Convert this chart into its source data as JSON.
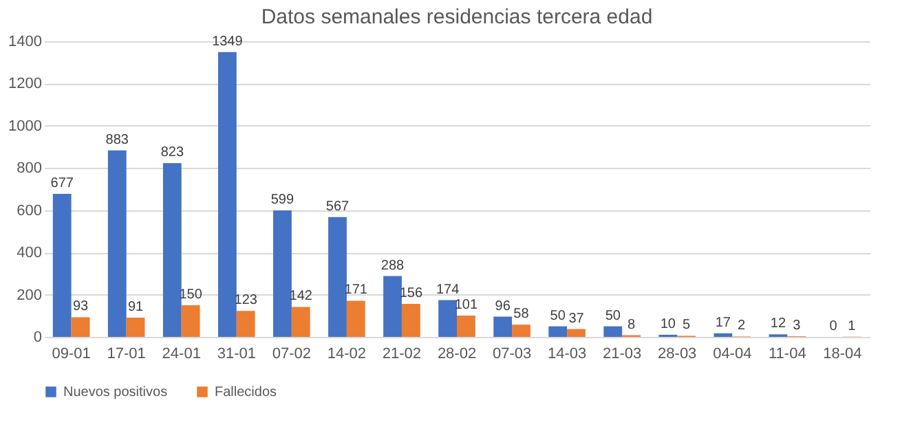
{
  "chart_data": {
    "type": "bar",
    "title": "Datos semanales residencias tercera edad",
    "categories": [
      "09-01",
      "17-01",
      "24-01",
      "31-01",
      "07-02",
      "14-02",
      "21-02",
      "28-02",
      "07-03",
      "14-03",
      "21-03",
      "28-03",
      "04-04",
      "11-04",
      "18-04"
    ],
    "series": [
      {
        "name": "Nuevos positivos",
        "color": "#4472c4",
        "values": [
          677,
          883,
          823,
          1349,
          599,
          567,
          288,
          174,
          96,
          50,
          50,
          10,
          17,
          12,
          0
        ]
      },
      {
        "name": "Fallecidos",
        "color": "#ed7d31",
        "values": [
          93,
          91,
          150,
          123,
          142,
          171,
          156,
          101,
          58,
          37,
          8,
          5,
          2,
          3,
          1
        ]
      }
    ],
    "ylim": [
      0,
      1400
    ],
    "yticks": [
      0,
      200,
      400,
      600,
      800,
      1000,
      1200,
      1400
    ],
    "grid": "y",
    "legend": "bottom",
    "data_labels": true
  }
}
